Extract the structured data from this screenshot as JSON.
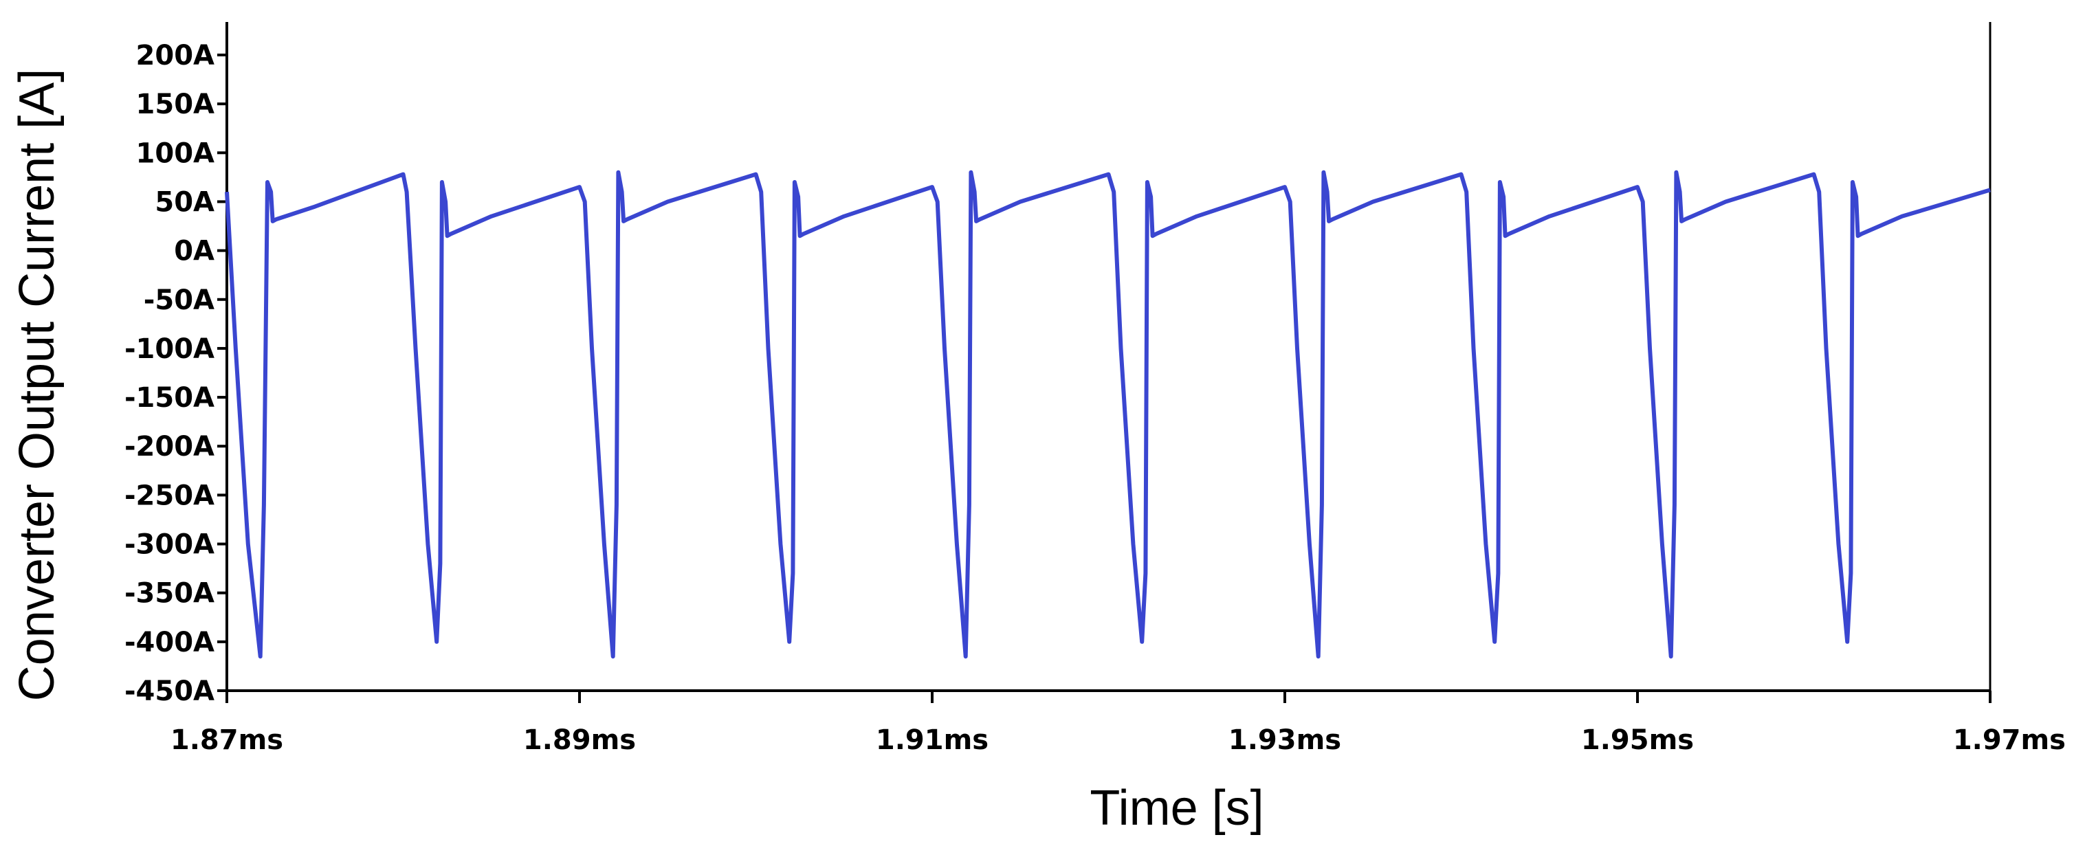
{
  "chart_data": {
    "type": "line",
    "title": "",
    "xlabel": "Time [s]",
    "ylabel": "Converter Output Current [A]",
    "xlim": [
      1.87,
      1.97
    ],
    "ylim": [
      -450,
      225
    ],
    "grid": false,
    "legend": "none",
    "x_ticks": [
      1.87,
      1.89,
      1.91,
      1.93,
      1.95,
      1.97
    ],
    "x_tick_labels": [
      "1.87ms",
      "1.89ms",
      "1.91ms",
      "1.93ms",
      "1.95ms",
      "1.97ms"
    ],
    "y_ticks": [
      200,
      150,
      100,
      50,
      0,
      -50,
      -100,
      -150,
      -200,
      -250,
      -300,
      -350,
      -400,
      -450
    ],
    "y_tick_labels": [
      "200A",
      "150A",
      "100A",
      "50A",
      "0A",
      "-50A",
      "-100A",
      "-150A",
      "-200A",
      "-250A",
      "-300A",
      "-350A",
      "-400A",
      "-450A"
    ],
    "series": [
      {
        "color": "#3a46d0",
        "x": [
          1.87,
          1.8705,
          1.8712,
          1.8719,
          1.8721,
          1.8723,
          1.8725,
          1.8726,
          1.8728,
          1.875,
          1.88,
          1.8802,
          1.8807,
          1.8814,
          1.8819,
          1.8821,
          1.8822,
          1.8824,
          1.8825,
          1.8827,
          1.885,
          1.89,
          1.8903,
          1.8907,
          1.8914,
          1.8919,
          1.8921,
          1.8922,
          1.8924,
          1.8925,
          1.8927,
          1.895,
          1.9,
          1.9003,
          1.9007,
          1.9014,
          1.9019,
          1.9021,
          1.9022,
          1.9024,
          1.9025,
          1.9027,
          1.905,
          1.91,
          1.9103,
          1.9107,
          1.9114,
          1.9119,
          1.9121,
          1.9122,
          1.9124,
          1.9125,
          1.9127,
          1.915,
          1.92,
          1.9203,
          1.9207,
          1.9214,
          1.9219,
          1.9221,
          1.9222,
          1.9224,
          1.9225,
          1.9227,
          1.925,
          1.93,
          1.9303,
          1.9307,
          1.9314,
          1.9319,
          1.9321,
          1.9322,
          1.9324,
          1.9325,
          1.9327,
          1.935,
          1.94,
          1.9403,
          1.9407,
          1.9414,
          1.9419,
          1.9421,
          1.9422,
          1.9424,
          1.9425,
          1.9427,
          1.945,
          1.95,
          1.9503,
          1.9507,
          1.9514,
          1.9519,
          1.9521,
          1.9522,
          1.9524,
          1.9525,
          1.9527,
          1.955,
          1.96,
          1.9603,
          1.9607,
          1.9614,
          1.9619,
          1.9621,
          1.9622,
          1.9624,
          1.9625,
          1.9627,
          1.965,
          1.97
        ],
        "y": [
          60,
          -100,
          -300,
          -415,
          -260,
          70,
          60,
          30,
          32,
          45,
          78,
          60,
          -100,
          -300,
          -400,
          -320,
          70,
          50,
          15,
          17,
          35,
          65,
          50,
          -100,
          -300,
          -415,
          -260,
          80,
          60,
          30,
          32,
          50,
          78,
          60,
          -100,
          -300,
          -400,
          -330,
          70,
          55,
          15,
          17,
          35,
          65,
          50,
          -100,
          -300,
          -415,
          -260,
          80,
          60,
          30,
          32,
          50,
          78,
          60,
          -100,
          -300,
          -400,
          -330,
          70,
          55,
          15,
          17,
          35,
          65,
          50,
          -100,
          -300,
          -415,
          -260,
          80,
          60,
          30,
          32,
          50,
          78,
          60,
          -100,
          -300,
          -400,
          -330,
          70,
          55,
          15,
          17,
          35,
          65,
          50,
          -100,
          -300,
          -415,
          -260,
          80,
          60,
          30,
          32,
          50,
          78,
          60,
          -100,
          -300,
          -400,
          -330,
          70,
          55,
          15,
          17,
          35,
          62
        ]
      }
    ]
  }
}
